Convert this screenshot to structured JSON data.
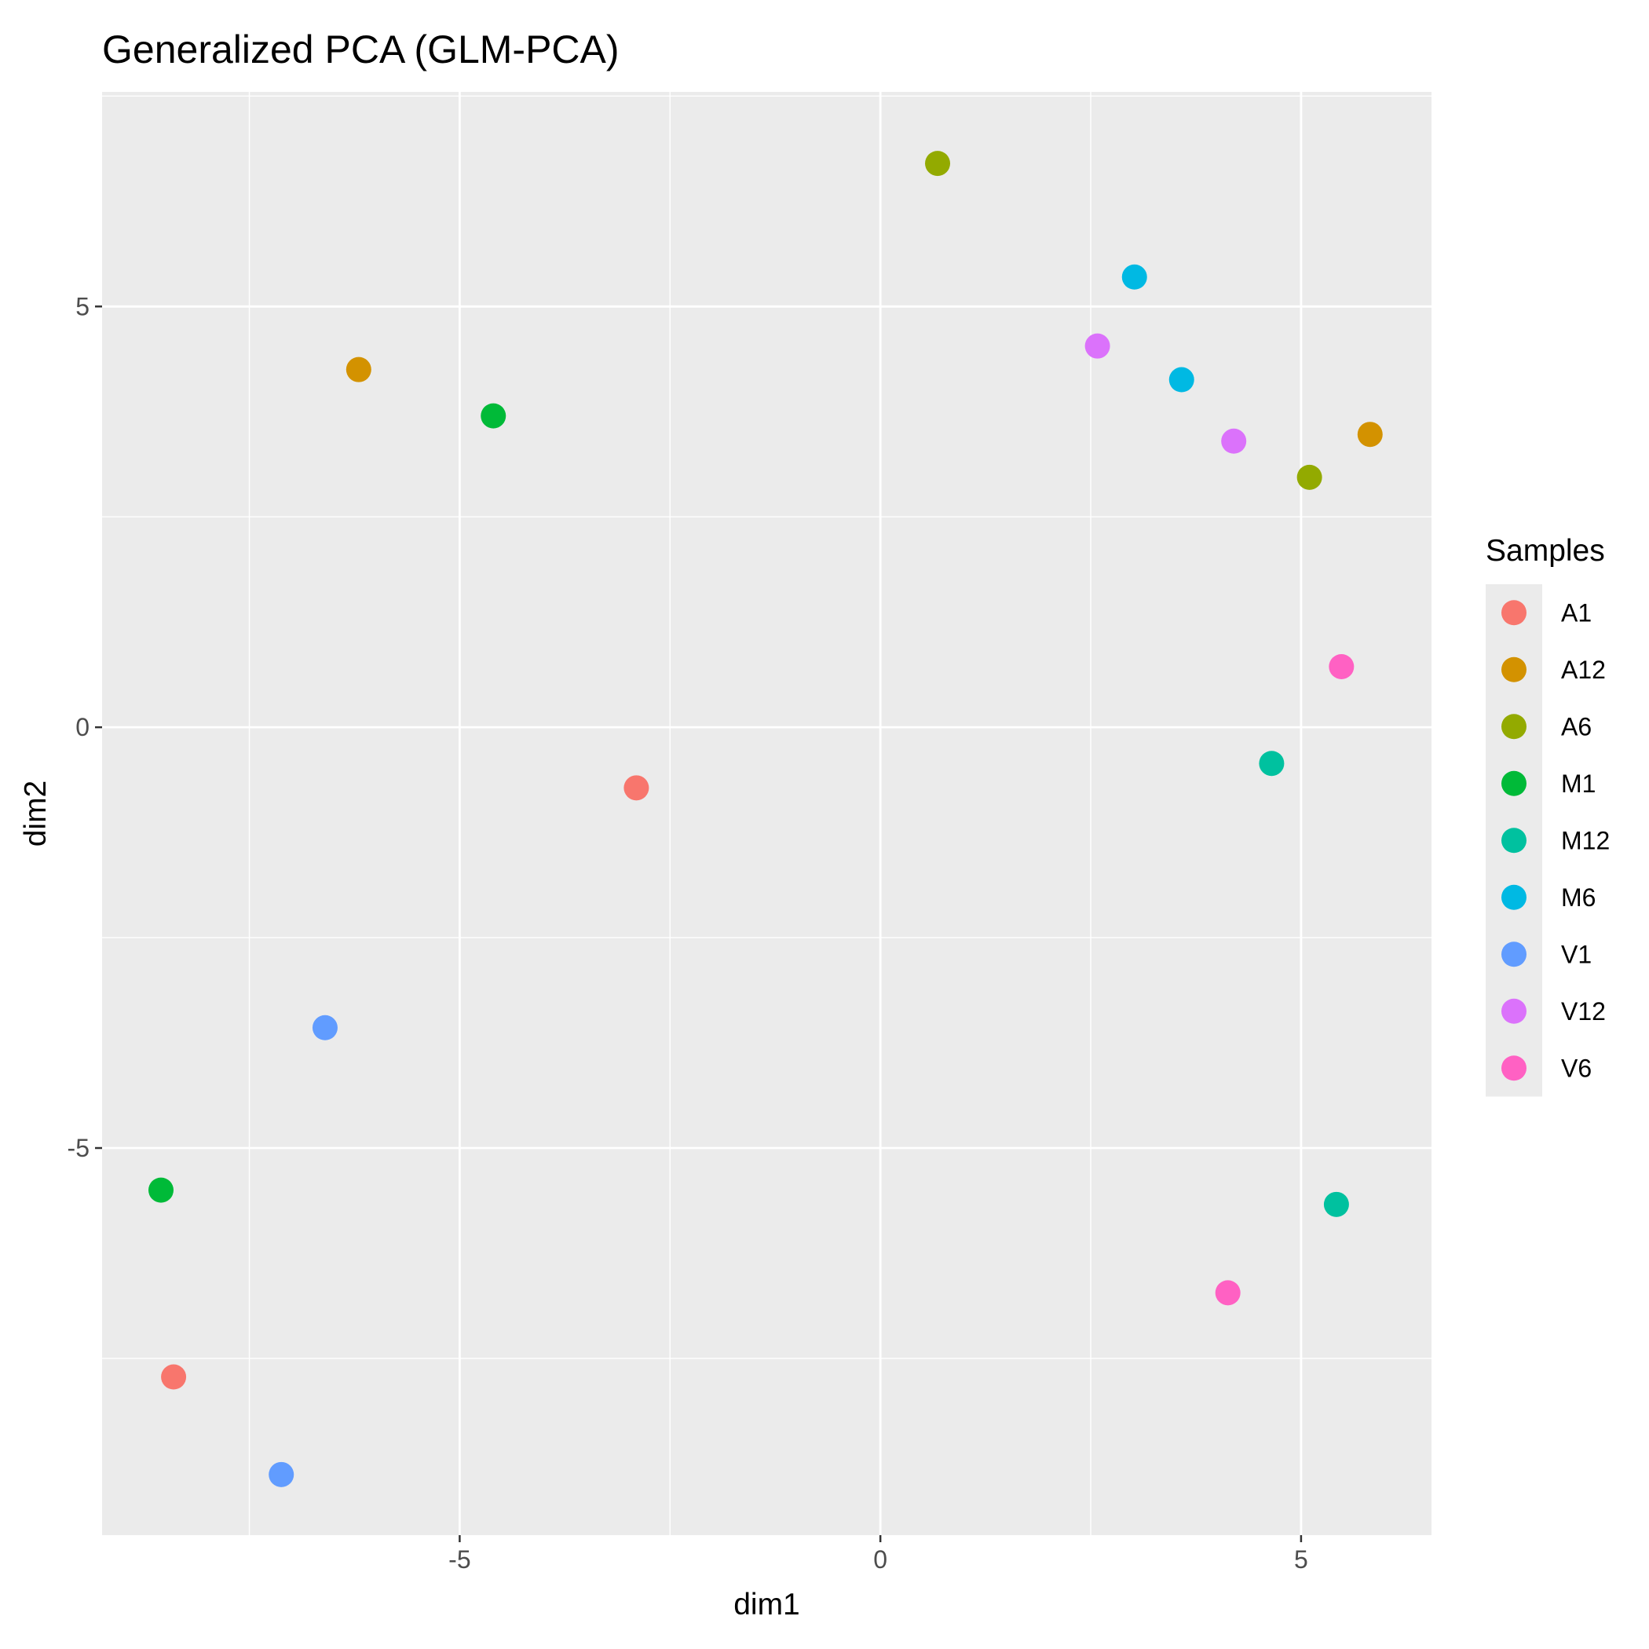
{
  "chart_data": {
    "type": "scatter",
    "title": "Generalized PCA (GLM-PCA)",
    "xlabel": "dim1",
    "ylabel": "dim2",
    "xlim": [
      -9.25,
      6.55
    ],
    "ylim": [
      -9.6,
      7.55
    ],
    "x_ticks": [
      -5,
      0,
      5
    ],
    "x_tick_labels": [
      "-5",
      "0",
      "5"
    ],
    "y_ticks": [
      -5,
      0,
      5
    ],
    "y_tick_labels": [
      "-5",
      "0",
      "5"
    ],
    "grid": true,
    "legend": {
      "title": "Samples",
      "position": "right"
    },
    "series": [
      {
        "name": "A1",
        "color": "#F8766D",
        "points": [
          [
            -2.9,
            -0.72
          ],
          [
            -8.4,
            -7.72
          ]
        ]
      },
      {
        "name": "A12",
        "color": "#D39200",
        "points": [
          [
            -6.2,
            4.25
          ],
          [
            5.82,
            3.48
          ]
        ]
      },
      {
        "name": "A6",
        "color": "#93AA00",
        "points": [
          [
            0.68,
            6.7
          ],
          [
            5.1,
            2.97
          ]
        ]
      },
      {
        "name": "M1",
        "color": "#00BA38",
        "points": [
          [
            -4.6,
            3.7
          ],
          [
            -8.55,
            -5.5
          ]
        ]
      },
      {
        "name": "M12",
        "color": "#00C19F",
        "points": [
          [
            4.65,
            -0.43
          ],
          [
            5.42,
            -5.67
          ]
        ]
      },
      {
        "name": "M6",
        "color": "#00B9E3",
        "points": [
          [
            3.02,
            5.35
          ],
          [
            3.58,
            4.13
          ]
        ]
      },
      {
        "name": "V1",
        "color": "#619CFF",
        "points": [
          [
            -6.6,
            -3.57
          ],
          [
            -7.12,
            -8.88
          ]
        ]
      },
      {
        "name": "V12",
        "color": "#DB72FB",
        "points": [
          [
            2.58,
            4.53
          ],
          [
            4.2,
            3.4
          ]
        ]
      },
      {
        "name": "V6",
        "color": "#FF61C3",
        "points": [
          [
            5.48,
            0.72
          ],
          [
            4.13,
            -6.72
          ]
        ]
      }
    ]
  }
}
